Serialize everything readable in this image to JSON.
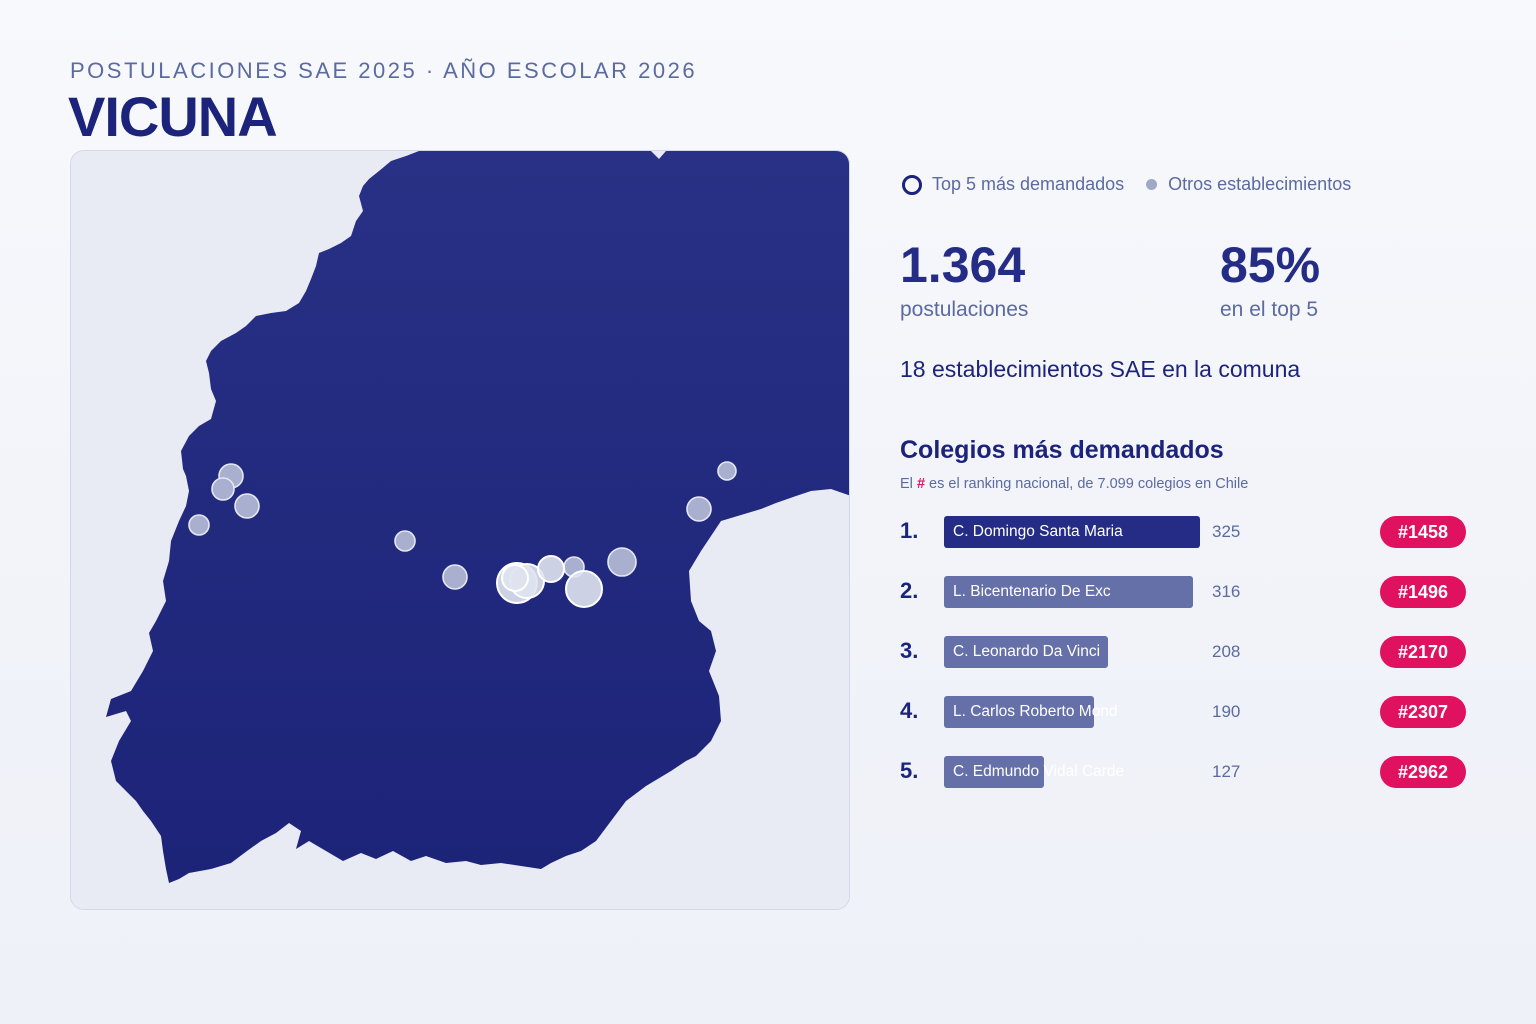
{
  "header": {
    "subtitle": "POSTULACIONES SAE 2025 · AÑO ESCOLAR 2026",
    "title": "VICUNA"
  },
  "legend": {
    "top5": "Top 5 más demandados",
    "others": "Otros establecimientos"
  },
  "stats": {
    "applications_value": "1.364",
    "applications_label": "postulaciones",
    "top5_share_value": "85%",
    "top5_share_label": "en el top 5"
  },
  "establishments_line": "18 establecimientos SAE en la comuna",
  "ranking": {
    "title": "Colegios más demandados",
    "note_prefix": "El",
    "note_hash": "#",
    "note_suffix": "es el ranking nacional, de 7.099 colegios en Chile",
    "max_value": 325,
    "items": [
      {
        "rank": "1.",
        "name": "C. Domingo Santa Maria",
        "value": 325,
        "value_text": "325",
        "national_rank": "#1458"
      },
      {
        "rank": "2.",
        "name": "L. Bicentenario De Exc",
        "value": 316,
        "value_text": "316",
        "national_rank": "#1496"
      },
      {
        "rank": "3.",
        "name": "C. Leonardo Da Vinci",
        "value": 208,
        "value_text": "208",
        "national_rank": "#2170"
      },
      {
        "rank": "4.",
        "name": "L. Carlos Roberto Mond",
        "value": 190,
        "value_text": "190",
        "national_rank": "#2307"
      },
      {
        "rank": "5.",
        "name": "C. Edmundo Vidal Carde",
        "value": 127,
        "value_text": "127",
        "national_rank": "#2962"
      }
    ]
  },
  "colors": {
    "accent": "#1c237a",
    "badge": "#e0115f",
    "bar_primary": "#252c86",
    "bar_secondary": "#6670a8",
    "land": "#22297f",
    "water": "#e8ebf4"
  }
}
